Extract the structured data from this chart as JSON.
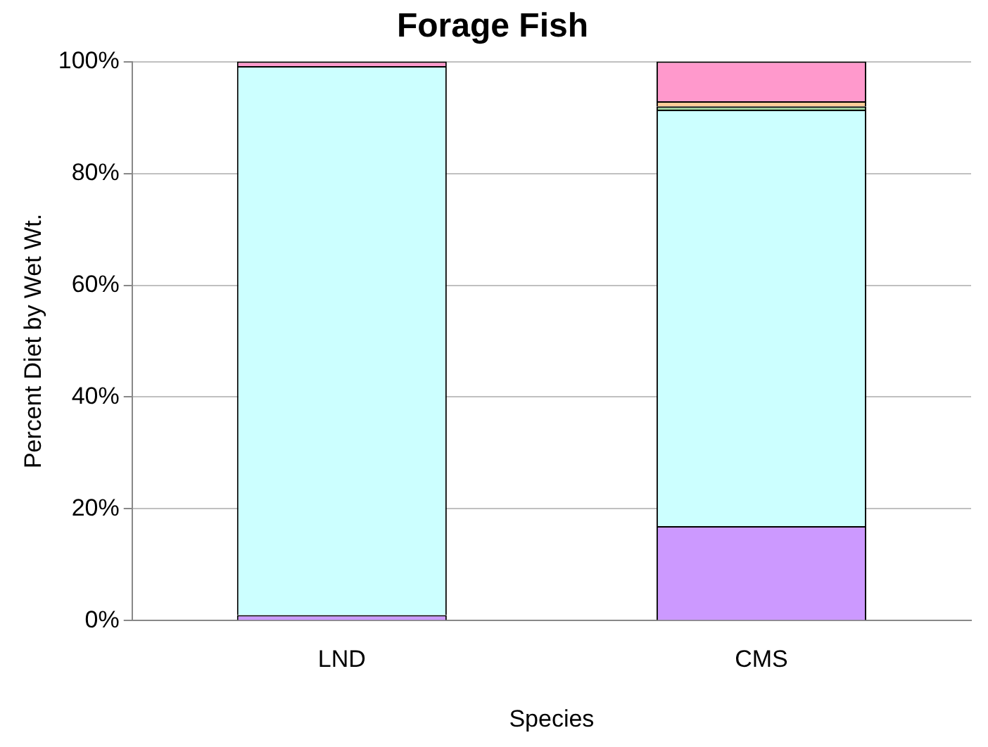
{
  "chart_data": {
    "type": "bar",
    "stacked": true,
    "title": "Forage Fish",
    "xlabel": "Species",
    "ylabel": "Percent Diet by Wet Wt.",
    "categories": [
      "LND",
      "CMS"
    ],
    "series": [
      {
        "color": "#cc99ff",
        "values": [
          1,
          16.9
        ]
      },
      {
        "color": "#ccffff",
        "values": [
          98.2,
          74.5
        ]
      },
      {
        "color": "#99cc99",
        "values": [
          0,
          0.6
        ]
      },
      {
        "color": "#ffcc99",
        "values": [
          0,
          0.9
        ]
      },
      {
        "color": "#ff99cc",
        "values": [
          0.8,
          7.1
        ]
      }
    ],
    "ylim": [
      0,
      100
    ],
    "yticks": [
      {
        "value": 0,
        "label": "0%"
      },
      {
        "value": 20,
        "label": "20%"
      },
      {
        "value": 40,
        "label": "40%"
      },
      {
        "value": 60,
        "label": "60%"
      },
      {
        "value": 80,
        "label": "80%"
      },
      {
        "value": 100,
        "label": "100%"
      }
    ],
    "grid": "y",
    "legend": false
  }
}
